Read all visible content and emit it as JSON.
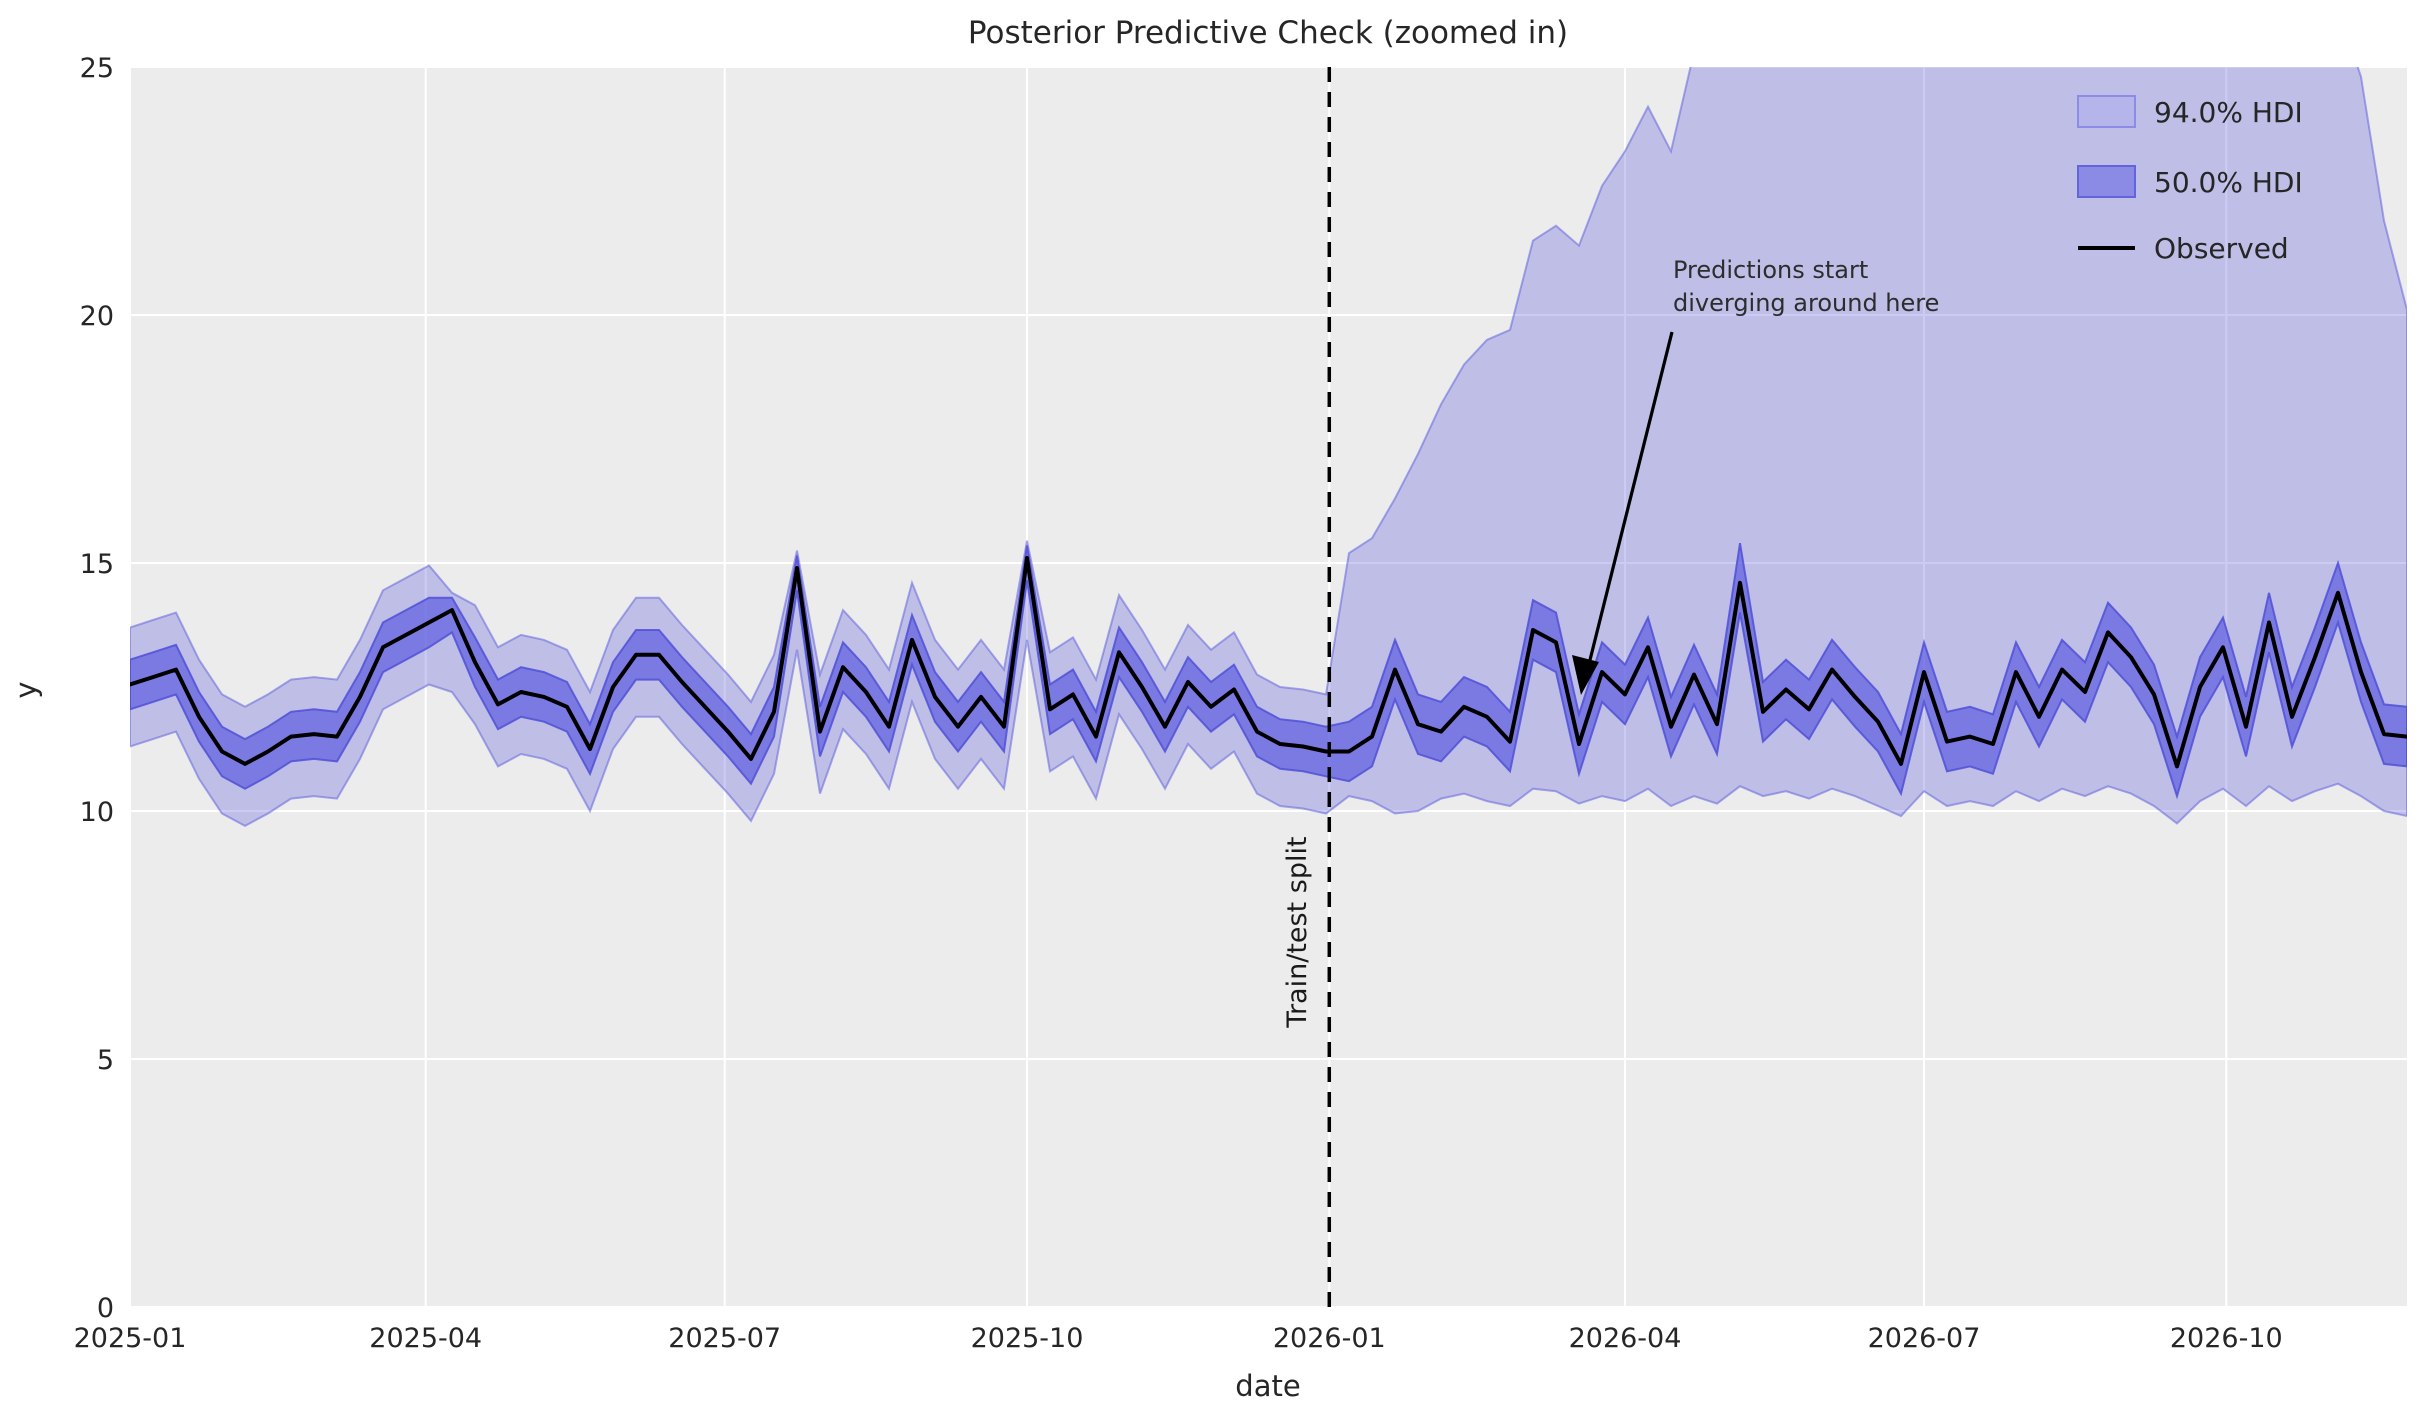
{
  "chart_data": {
    "type": "line",
    "title": "Posterior Predictive Check (zoomed in)",
    "xlabel": "date",
    "ylabel": "y",
    "x_start_date": "2025-01-01",
    "x_freq_days": 7,
    "x_total_days": 693,
    "ylim": [
      0,
      25
    ],
    "y_ticks": [
      0,
      5,
      10,
      15,
      20,
      25
    ],
    "x_tick_labels": [
      "2025-01",
      "2025-04",
      "2025-07",
      "2025-10",
      "2026-01",
      "2026-04",
      "2026-07",
      "2026-10"
    ],
    "grid": "white-on-gray",
    "legend_position": "upper right",
    "legend": [
      "94.0% HDI",
      "50.0% HDI",
      "Observed"
    ],
    "split_line": {
      "date": "2026-01-01",
      "label": "Train/test split",
      "style": "dashed"
    },
    "annotation": {
      "line1": "Predictions start",
      "line2": "diverging around here",
      "arrow_points_to_date": "2026-03-20",
      "arrow_points_to_value": 11.6
    },
    "series": [
      {
        "name": "Observed",
        "values": [
          12.55,
          12.7,
          12.85,
          11.9,
          11.2,
          10.95,
          11.2,
          11.5,
          11.55,
          11.5,
          12.3,
          13.3,
          13.55,
          13.8,
          14.05,
          13.0,
          12.15,
          12.4,
          12.3,
          12.1,
          11.25,
          12.5,
          13.15,
          13.15,
          12.6,
          12.1,
          11.6,
          11.05,
          12.0,
          14.9,
          11.6,
          12.9,
          12.4,
          11.7,
          13.45,
          12.3,
          11.7,
          12.3,
          11.7,
          15.1,
          12.05,
          12.35,
          11.5,
          13.2,
          12.5,
          11.7,
          12.6,
          12.1,
          12.45,
          11.6,
          11.35,
          11.3,
          11.2,
          11.2,
          11.5,
          12.85,
          11.75,
          11.6,
          12.1,
          11.9,
          11.4,
          13.65,
          13.4,
          11.35,
          12.8,
          12.35,
          13.3,
          11.7,
          12.75,
          11.75,
          14.6,
          12.0,
          12.45,
          12.05,
          12.85,
          12.3,
          11.8,
          10.95,
          12.8,
          11.4,
          11.5,
          11.35,
          12.8,
          11.9,
          12.85,
          12.4,
          13.6,
          13.1,
          12.35,
          10.9,
          12.5,
          13.3,
          11.7,
          13.8,
          11.9,
          13.1,
          14.4,
          12.8,
          11.55,
          11.5
        ]
      },
      {
        "name": "50.0% HDI upper",
        "values": [
          13.05,
          13.2,
          13.35,
          12.4,
          11.7,
          11.45,
          11.7,
          12.0,
          12.05,
          12.0,
          12.8,
          13.8,
          14.05,
          14.3,
          14.3,
          13.5,
          12.65,
          12.9,
          12.8,
          12.6,
          11.75,
          13.0,
          13.65,
          13.65,
          13.1,
          12.6,
          12.1,
          11.55,
          12.5,
          15.15,
          12.1,
          13.4,
          12.9,
          12.2,
          13.95,
          12.8,
          12.2,
          12.8,
          12.2,
          15.35,
          12.55,
          12.85,
          12.0,
          13.7,
          13.0,
          12.2,
          13.1,
          12.6,
          12.95,
          12.1,
          11.85,
          11.8,
          11.7,
          11.8,
          12.1,
          13.45,
          12.35,
          12.2,
          12.7,
          12.5,
          12.0,
          14.25,
          14.0,
          11.95,
          13.4,
          12.95,
          13.9,
          12.3,
          13.35,
          12.35,
          15.4,
          12.6,
          13.05,
          12.65,
          13.45,
          12.9,
          12.4,
          11.55,
          13.4,
          12.0,
          12.1,
          11.95,
          13.4,
          12.5,
          13.45,
          13.0,
          14.2,
          13.7,
          12.95,
          11.5,
          13.1,
          13.9,
          12.3,
          14.4,
          12.5,
          13.7,
          15.0,
          13.4,
          12.15,
          12.1
        ]
      },
      {
        "name": "50.0% HDI lower",
        "values": [
          12.05,
          12.2,
          12.35,
          11.4,
          10.7,
          10.45,
          10.7,
          11.0,
          11.05,
          11.0,
          11.8,
          12.8,
          13.05,
          13.3,
          13.6,
          12.5,
          11.65,
          11.9,
          11.8,
          11.6,
          10.75,
          12.0,
          12.65,
          12.65,
          12.1,
          11.6,
          11.1,
          10.55,
          11.5,
          14.45,
          11.1,
          12.4,
          11.9,
          11.2,
          12.95,
          11.8,
          11.2,
          11.8,
          11.2,
          14.65,
          11.55,
          11.85,
          11.0,
          12.7,
          12.0,
          11.2,
          12.1,
          11.6,
          11.95,
          11.1,
          10.85,
          10.8,
          10.7,
          10.6,
          10.9,
          12.25,
          11.15,
          11.0,
          11.5,
          11.3,
          10.8,
          13.05,
          12.8,
          10.75,
          12.2,
          11.75,
          12.7,
          11.1,
          12.15,
          11.15,
          14.0,
          11.4,
          11.85,
          11.45,
          12.25,
          11.7,
          11.2,
          10.35,
          12.2,
          10.8,
          10.9,
          10.75,
          12.2,
          11.3,
          12.25,
          11.8,
          13.0,
          12.5,
          11.75,
          10.3,
          11.9,
          12.7,
          11.1,
          13.2,
          11.3,
          12.5,
          13.8,
          12.2,
          10.95,
          10.9
        ]
      },
      {
        "name": "94.0% HDI upper",
        "values": [
          13.7,
          13.85,
          14.0,
          13.05,
          12.35,
          12.1,
          12.35,
          12.65,
          12.7,
          12.65,
          13.45,
          14.45,
          14.7,
          14.95,
          14.4,
          14.15,
          13.3,
          13.55,
          13.45,
          13.25,
          12.4,
          13.65,
          14.3,
          14.3,
          13.75,
          13.25,
          12.75,
          12.2,
          13.15,
          15.25,
          12.75,
          14.05,
          13.55,
          12.85,
          14.6,
          13.45,
          12.85,
          13.45,
          12.85,
          15.45,
          13.2,
          13.5,
          12.65,
          14.35,
          13.65,
          12.85,
          13.75,
          13.25,
          13.6,
          12.75,
          12.5,
          12.45,
          12.35,
          15.2,
          15.5,
          16.3,
          17.2,
          18.2,
          19.0,
          19.5,
          19.7,
          21.5,
          21.8,
          21.4,
          22.6,
          23.3,
          24.2,
          23.3,
          25.3,
          26.2,
          27.0,
          27.5,
          28.0,
          27.5,
          27.0,
          28.0,
          28.5,
          28.0,
          27.5,
          27.0,
          27.5,
          28.0,
          28.5,
          28.0,
          27.5,
          27.0,
          27.5,
          28.0,
          27.5,
          27.0,
          26.5,
          27.0,
          27.5,
          28.0,
          27.0,
          26.8,
          26.2,
          24.8,
          21.9,
          20.1
        ]
      },
      {
        "name": "94.0% HDI lower",
        "values": [
          11.3,
          11.45,
          11.6,
          10.65,
          9.95,
          9.7,
          9.95,
          10.25,
          10.3,
          10.25,
          11.05,
          12.05,
          12.3,
          12.55,
          12.4,
          11.75,
          10.9,
          11.15,
          11.05,
          10.85,
          10.0,
          11.25,
          11.9,
          11.9,
          11.35,
          10.85,
          10.35,
          9.8,
          10.75,
          13.25,
          10.35,
          11.65,
          11.15,
          10.45,
          12.2,
          11.05,
          10.45,
          11.05,
          10.45,
          13.45,
          10.8,
          11.1,
          10.25,
          11.95,
          11.25,
          10.45,
          11.35,
          10.85,
          11.2,
          10.35,
          10.1,
          10.05,
          9.95,
          10.3,
          10.2,
          9.95,
          10.0,
          10.25,
          10.35,
          10.2,
          10.1,
          10.45,
          10.4,
          10.15,
          10.3,
          10.2,
          10.45,
          10.1,
          10.3,
          10.15,
          10.5,
          10.3,
          10.4,
          10.25,
          10.45,
          10.3,
          10.1,
          9.9,
          10.4,
          10.1,
          10.2,
          10.1,
          10.4,
          10.2,
          10.45,
          10.3,
          10.5,
          10.35,
          10.1,
          9.75,
          10.2,
          10.45,
          10.1,
          10.5,
          10.2,
          10.4,
          10.55,
          10.3,
          10.0,
          9.9
        ]
      }
    ],
    "colors": {
      "background": "#ffffff",
      "axes_background": "#ececec",
      "gridline": "#ffffff",
      "hdi94_fill": "rgba(106,106,224,0.35)",
      "hdi94_edge": "rgba(100,100,222,0.55)",
      "hdi50_fill": "rgba(95,95,224,0.72)",
      "hdi50_edge": "rgba(80,80,215,0.85)",
      "observed_line": "#000000",
      "split_line": "#000000",
      "text": "#262626",
      "legend_swatch_94": "#b5b5ec",
      "legend_swatch_50": "#8b8be6"
    }
  }
}
